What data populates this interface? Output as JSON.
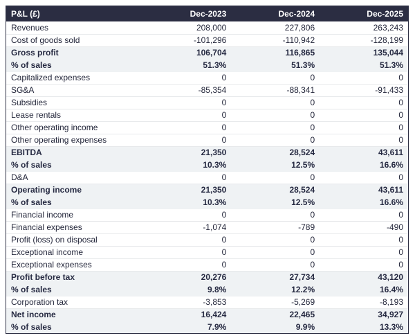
{
  "colors": {
    "header_bg": "#2b2d42",
    "header_text": "#ffffff",
    "subtotal_bg": "#eff2f4",
    "body_text": "#23263a",
    "emph_text": "#262a42",
    "outer_border": "#2b2d42",
    "row_divider": "#e7e9eb",
    "page_bg": "#ffffff"
  },
  "chart_data": {
    "type": "table",
    "title": "P&L (£)",
    "columns": [
      "P&L (£)",
      "Dec-2023",
      "Dec-2024",
      "Dec-2025"
    ],
    "rows": [
      {
        "label": "Revenues",
        "values": [
          "208,000",
          "227,806",
          "263,243"
        ],
        "emphasis": false
      },
      {
        "label": "Cost of goods sold",
        "values": [
          "-101,296",
          "-110,942",
          "-128,199"
        ],
        "emphasis": false
      },
      {
        "label": "Gross profit",
        "values": [
          "106,704",
          "116,865",
          "135,044"
        ],
        "emphasis": true
      },
      {
        "label": "% of sales",
        "values": [
          "51.3%",
          "51.3%",
          "51.3%"
        ],
        "emphasis": true
      },
      {
        "label": "Capitalized expenses",
        "values": [
          "0",
          "0",
          "0"
        ],
        "emphasis": false
      },
      {
        "label": "SG&A",
        "values": [
          "-85,354",
          "-88,341",
          "-91,433"
        ],
        "emphasis": false
      },
      {
        "label": "Subsidies",
        "values": [
          "0",
          "0",
          "0"
        ],
        "emphasis": false
      },
      {
        "label": "Lease rentals",
        "values": [
          "0",
          "0",
          "0"
        ],
        "emphasis": false
      },
      {
        "label": "Other operating income",
        "values": [
          "0",
          "0",
          "0"
        ],
        "emphasis": false
      },
      {
        "label": "Other operating expenses",
        "values": [
          "0",
          "0",
          "0"
        ],
        "emphasis": false
      },
      {
        "label": "EBITDA",
        "values": [
          "21,350",
          "28,524",
          "43,611"
        ],
        "emphasis": true
      },
      {
        "label": "% of sales",
        "values": [
          "10.3%",
          "12.5%",
          "16.6%"
        ],
        "emphasis": true
      },
      {
        "label": "D&A",
        "values": [
          "0",
          "0",
          "0"
        ],
        "emphasis": false
      },
      {
        "label": "Operating income",
        "values": [
          "21,350",
          "28,524",
          "43,611"
        ],
        "emphasis": true
      },
      {
        "label": "% of sales",
        "values": [
          "10.3%",
          "12.5%",
          "16.6%"
        ],
        "emphasis": true
      },
      {
        "label": "Financial income",
        "values": [
          "0",
          "0",
          "0"
        ],
        "emphasis": false
      },
      {
        "label": "Financial expenses",
        "values": [
          "-1,074",
          "-789",
          "-490"
        ],
        "emphasis": false
      },
      {
        "label": "Profit (loss) on disposal",
        "values": [
          "0",
          "0",
          "0"
        ],
        "emphasis": false
      },
      {
        "label": "Exceptional income",
        "values": [
          "0",
          "0",
          "0"
        ],
        "emphasis": false
      },
      {
        "label": "Exceptional expenses",
        "values": [
          "0",
          "0",
          "0"
        ],
        "emphasis": false
      },
      {
        "label": "Profit before tax",
        "values": [
          "20,276",
          "27,734",
          "43,120"
        ],
        "emphasis": true
      },
      {
        "label": "% of sales",
        "values": [
          "9.8%",
          "12.2%",
          "16.4%"
        ],
        "emphasis": true
      },
      {
        "label": "Corporation tax",
        "values": [
          "-3,853",
          "-5,269",
          "-8,193"
        ],
        "emphasis": false
      },
      {
        "label": "Net income",
        "values": [
          "16,424",
          "22,465",
          "34,927"
        ],
        "emphasis": true
      },
      {
        "label": "% of sales",
        "values": [
          "7.9%",
          "9.9%",
          "13.3%"
        ],
        "emphasis": true
      }
    ]
  }
}
